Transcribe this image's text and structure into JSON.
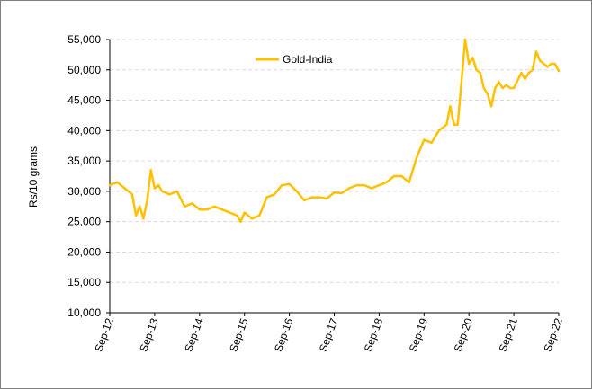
{
  "chart_data": {
    "type": "line",
    "title": "",
    "xlabel": "",
    "ylabel": "Rs/10 grams",
    "ylim": [
      10000,
      55000
    ],
    "yticks": [
      "10,000",
      "15,000",
      "20,000",
      "25,000",
      "30,000",
      "35,000",
      "40,000",
      "45,000",
      "50,000",
      "55,000"
    ],
    "ytick_values": [
      10000,
      15000,
      20000,
      25000,
      30000,
      35000,
      40000,
      45000,
      50000,
      55000
    ],
    "xticks": [
      "Sep-12",
      "Sep-13",
      "Sep-14",
      "Sep-15",
      "Sep-16",
      "Sep-17",
      "Sep-18",
      "Sep-19",
      "Sep-20",
      "Sep-21",
      "Sep-22"
    ],
    "xlim": [
      "Sep-12",
      "Sep-22"
    ],
    "grid": true,
    "legend": "top-center",
    "series": [
      {
        "name": "Gold-India",
        "color": "#FFC000",
        "x": [
          "Sep-12",
          "Nov-12",
          "Jan-13",
          "Mar-13",
          "Apr-13",
          "May-13",
          "Jun-13",
          "Jul-13",
          "Aug-13",
          "Sep-13",
          "Oct-13",
          "Nov-13",
          "Jan-14",
          "Mar-14",
          "May-14",
          "Jul-14",
          "Sep-14",
          "Nov-14",
          "Jan-15",
          "Mar-15",
          "May-15",
          "Jul-15",
          "Aug-15",
          "Sep-15",
          "Nov-15",
          "Jan-16",
          "Mar-16",
          "May-16",
          "Jul-16",
          "Sep-16",
          "Nov-16",
          "Jan-17",
          "Mar-17",
          "May-17",
          "Jul-17",
          "Sep-17",
          "Nov-17",
          "Jan-18",
          "Mar-18",
          "May-18",
          "Jul-18",
          "Sep-18",
          "Nov-18",
          "Jan-19",
          "Mar-19",
          "May-19",
          "Jul-19",
          "Sep-19",
          "Nov-19",
          "Jan-20",
          "Mar-20",
          "Apr-20",
          "May-20",
          "Jun-20",
          "Jul-20",
          "Aug-20",
          "Sep-20",
          "Oct-20",
          "Nov-20",
          "Dec-20",
          "Jan-21",
          "Feb-21",
          "Mar-21",
          "Apr-21",
          "May-21",
          "Jun-21",
          "Jul-21",
          "Aug-21",
          "Sep-21",
          "Nov-21",
          "Dec-21",
          "Jan-22",
          "Feb-22",
          "Mar-22",
          "Apr-22",
          "May-22",
          "Jun-22",
          "Jul-22",
          "Aug-22",
          "Sep-22"
        ],
        "values": [
          31000,
          31500,
          30500,
          29500,
          26000,
          27500,
          25500,
          28500,
          33500,
          30500,
          31000,
          30000,
          29500,
          30000,
          27500,
          28000,
          27000,
          27000,
          27500,
          27000,
          26500,
          26000,
          25000,
          26500,
          25500,
          26000,
          29000,
          29500,
          31000,
          31200,
          30000,
          28500,
          29000,
          29000,
          28800,
          29800,
          29700,
          30500,
          31000,
          31000,
          30500,
          31000,
          31500,
          32500,
          32500,
          31500,
          35500,
          38500,
          38000,
          40000,
          41000,
          44000,
          41000,
          41000,
          48000,
          55000,
          51000,
          52000,
          50000,
          49500,
          47000,
          46000,
          44000,
          47000,
          48000,
          47000,
          47500,
          47000,
          47000,
          49500,
          48500,
          49500,
          50000,
          53000,
          51500,
          51000,
          50500,
          51000,
          51000,
          49800
        ]
      }
    ]
  }
}
